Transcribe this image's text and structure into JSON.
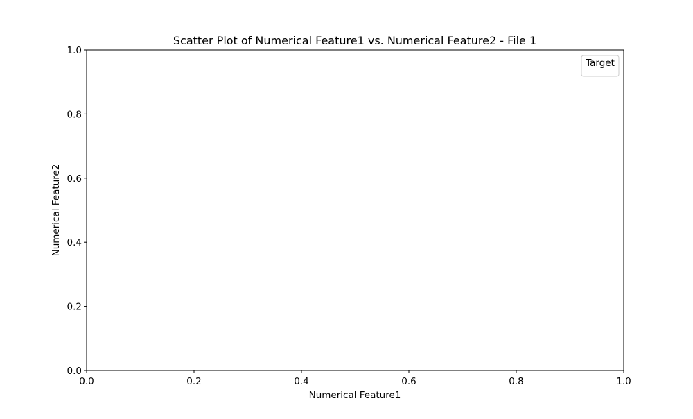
{
  "chart_data": {
    "type": "scatter",
    "title": "Scatter Plot of Numerical Feature1 vs. Numerical Feature2 - File 1",
    "xlabel": "Numerical Feature1",
    "ylabel": "Numerical Feature2",
    "xlim": [
      0.0,
      1.0
    ],
    "ylim": [
      0.0,
      1.0
    ],
    "x_ticks": [
      0.0,
      0.2,
      0.4,
      0.6,
      0.8,
      1.0
    ],
    "y_ticks": [
      0.0,
      0.2,
      0.4,
      0.6,
      0.8,
      1.0
    ],
    "x_tick_labels": [
      "0.0",
      "0.2",
      "0.4",
      "0.6",
      "0.8",
      "1.0"
    ],
    "y_tick_labels": [
      "0.0",
      "0.2",
      "0.4",
      "0.6",
      "0.8",
      "1.0"
    ],
    "grid": false,
    "legend": {
      "title": "Target",
      "placement": "top-right",
      "entries": []
    },
    "series": []
  }
}
